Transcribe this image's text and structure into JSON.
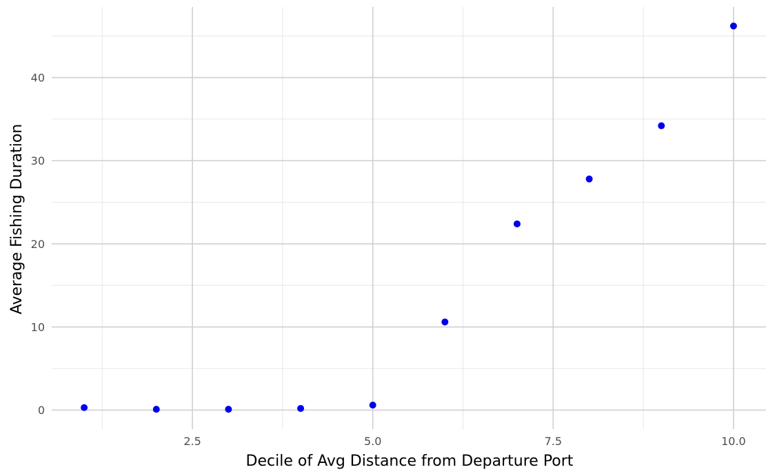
{
  "chart_data": {
    "type": "scatter",
    "title": "",
    "xlabel": "Decile of Avg Distance from Departure Port",
    "ylabel": "Average Fishing Duration",
    "xlim": [
      0.55,
      10.45
    ],
    "ylim": [
      -2.3,
      48.5
    ],
    "x_ticks": [
      2.5,
      5.0,
      7.5,
      10.0
    ],
    "x_tick_labels": [
      "2.5",
      "5.0",
      "7.5",
      "10.0"
    ],
    "x_minor_ticks": [
      1.25,
      3.75,
      6.25,
      8.75
    ],
    "y_ticks": [
      0,
      10,
      20,
      30,
      40
    ],
    "y_tick_labels": [
      "0",
      "10",
      "20",
      "30",
      "40"
    ],
    "y_minor_ticks": [
      5,
      15,
      25,
      35,
      45
    ],
    "grid": true,
    "legend": "none",
    "point_color": "#0000ee",
    "points": [
      {
        "x": 1,
        "y": 0.3
      },
      {
        "x": 2,
        "y": 0.1
      },
      {
        "x": 3,
        "y": 0.1
      },
      {
        "x": 4,
        "y": 0.2
      },
      {
        "x": 5,
        "y": 0.6
      },
      {
        "x": 6,
        "y": 10.6
      },
      {
        "x": 7,
        "y": 22.4
      },
      {
        "x": 8,
        "y": 27.8
      },
      {
        "x": 9,
        "y": 34.2
      },
      {
        "x": 10,
        "y": 46.2
      }
    ]
  }
}
